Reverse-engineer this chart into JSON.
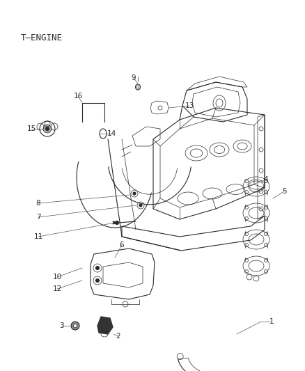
{
  "title": "T-ENGINE",
  "bg": "#ffffff",
  "lc": "#2a2a2a",
  "label_fs": 7.5,
  "title_fs": 9
}
